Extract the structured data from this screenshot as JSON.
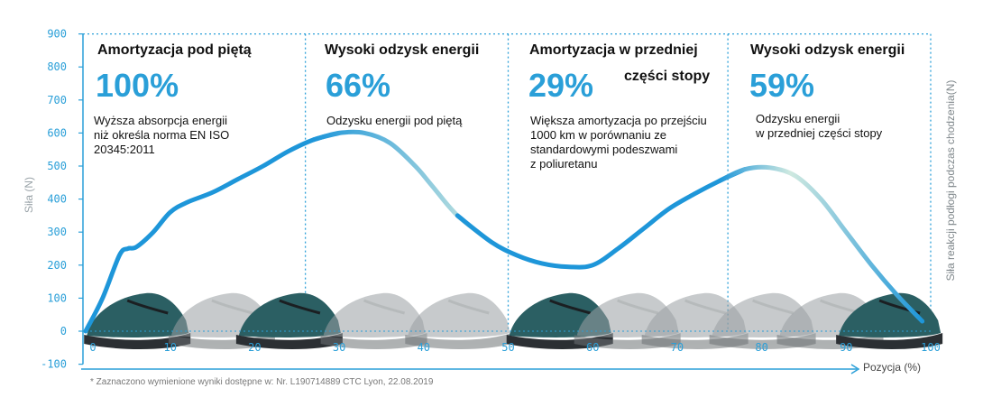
{
  "segments": [
    {
      "title": "Amortyzacja pod piętą",
      "percent": "100%",
      "description": "Wyższa absorpcja energii\nniż określa norma EN ISO\n20345:2011"
    },
    {
      "title": "Wysoki odzysk energii",
      "percent": "66%",
      "description": "Odzysku energii pod piętą"
    },
    {
      "title": "Amortyzacja w przedniej",
      "title2": "części stopy",
      "percent": "29%",
      "description": "Większa amortyzacja po przejściu\n1000 km w porównaniu ze\nstandardowymi podeszwami\nz poliuretanu"
    },
    {
      "title": "Wysoki odzysk energii",
      "percent": "59%",
      "description": "Odzysku energii\nw przedniej części stopy"
    }
  ],
  "footnote": "* Zaznaczono wymienione wyniki dostępne w: Nr. L190714889 CTC Lyon, 22.08.2019",
  "colors": {
    "axis": "#2a9fd8",
    "curve": "#1e96d9",
    "curve_fade": "#d8eee6",
    "shoe_teal": "#2b5f63",
    "shoe_gray": "#9aa0a3"
  },
  "chart_data": {
    "type": "line",
    "xlabel": "Pozycja (%)",
    "ylabel": "Siła (N)",
    "ylabel_right": "Siła reakcji podłogi podczas chodzenia(N)",
    "xlim": [
      0,
      100
    ],
    "ylim": [
      -100,
      900
    ],
    "x_ticks": [
      0,
      10,
      20,
      30,
      40,
      50,
      60,
      70,
      80,
      90,
      100
    ],
    "y_ticks": [
      -100,
      0,
      100,
      200,
      300,
      400,
      500,
      600,
      700,
      800,
      900
    ],
    "segment_boundaries": [
      26,
      50,
      76
    ],
    "grid": false,
    "series": [
      {
        "x": [
          0,
          2,
          4,
          5,
          6,
          8,
          10,
          12,
          15,
          18,
          21,
          24,
          27,
          30,
          33,
          36,
          39,
          41,
          44,
          48,
          51,
          54,
          57,
          60,
          63,
          66,
          69,
          72,
          75,
          78,
          81,
          84,
          87,
          90,
          93,
          96,
          99
        ],
        "y": [
          0,
          100,
          230,
          250,
          255,
          300,
          360,
          390,
          420,
          460,
          500,
          545,
          580,
          600,
          600,
          570,
          500,
          440,
          350,
          270,
          230,
          205,
          195,
          200,
          250,
          310,
          370,
          415,
          455,
          490,
          495,
          470,
          400,
          300,
          200,
          110,
          30
        ]
      }
    ]
  }
}
